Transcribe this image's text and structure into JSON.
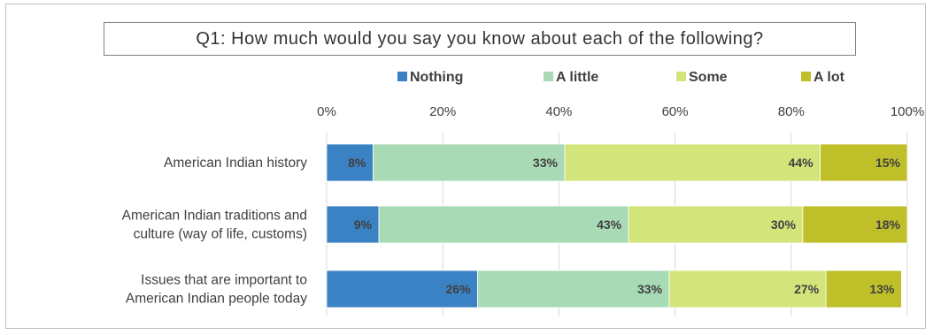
{
  "chart_data": {
    "type": "bar",
    "orientation": "horizontal",
    "stacked": true,
    "percent": true,
    "title": "Q1: How much would you say you know about each of the following?",
    "xlabel": "",
    "ylabel": "",
    "xlim": [
      0,
      100
    ],
    "x_ticks": [
      "0%",
      "20%",
      "40%",
      "60%",
      "80%",
      "100%"
    ],
    "x_tick_values": [
      0,
      20,
      40,
      60,
      80,
      100
    ],
    "legend_position": "top",
    "grid": true,
    "categories": [
      [
        "American Indian history"
      ],
      [
        "American Indian traditions and",
        "culture (way of life, customs)"
      ],
      [
        "Issues that are important to",
        "American Indian people today"
      ]
    ],
    "series": [
      {
        "name": "Nothing",
        "color": "#3b82c4",
        "values": [
          8,
          9,
          26
        ],
        "labels": [
          "8%",
          "9%",
          "26%"
        ]
      },
      {
        "name": "A little",
        "color": "#a8dab5",
        "values": [
          33,
          43,
          33
        ],
        "labels": [
          "33%",
          "43%",
          "33%"
        ]
      },
      {
        "name": "Some",
        "color": "#d3e57a",
        "values": [
          44,
          30,
          27
        ],
        "labels": [
          "44%",
          "30%",
          "27%"
        ]
      },
      {
        "name": "A lot",
        "color": "#bfbf2a",
        "values": [
          15,
          18,
          13
        ],
        "labels": [
          "15%",
          "18%",
          "13%"
        ]
      }
    ]
  }
}
